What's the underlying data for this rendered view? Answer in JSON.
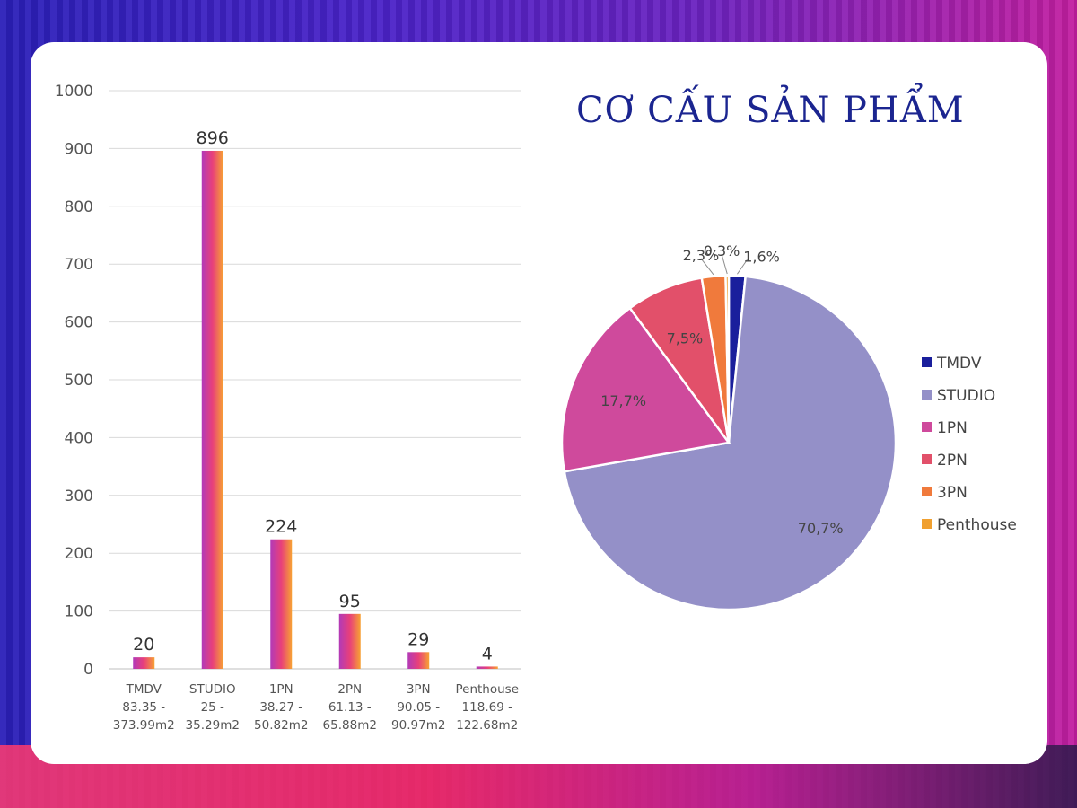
{
  "title": "CƠ CẤU SẢN PHẨM",
  "chart_data": [
    {
      "type": "bar",
      "ylim": [
        0,
        1000
      ],
      "yticks": [
        0,
        100,
        200,
        300,
        400,
        500,
        600,
        700,
        800,
        900,
        1000
      ],
      "grid": true,
      "categories": [
        {
          "name": "TMDV",
          "range": [
            "83.35 -",
            "373.99m2"
          ]
        },
        {
          "name": "STUDIO",
          "range": [
            "25 -",
            "35.29m2"
          ]
        },
        {
          "name": "1PN",
          "range": [
            "38.27 -",
            "50.82m2"
          ]
        },
        {
          "name": "2PN",
          "range": [
            "61.13 -",
            "65.88m2"
          ]
        },
        {
          "name": "3PN",
          "range": [
            "90.05 -",
            "90.97m2"
          ]
        },
        {
          "name": "Penthouse",
          "range": [
            "118.69 -",
            "122.68m2"
          ]
        }
      ],
      "values": [
        20,
        896,
        224,
        95,
        29,
        4
      ]
    },
    {
      "type": "pie",
      "legend": "right",
      "slices": [
        {
          "name": "TMDV",
          "label": "1,6%",
          "value": 1.6,
          "color": "#1a1f9c"
        },
        {
          "name": "STUDIO",
          "label": "70,7%",
          "value": 70.7,
          "color": "#9490c8"
        },
        {
          "name": "1PN",
          "label": "17,7%",
          "value": 17.7,
          "color": "#cf4a9c"
        },
        {
          "name": "2PN",
          "label": "7,5%",
          "value": 7.5,
          "color": "#e2506a"
        },
        {
          "name": "3PN",
          "label": "2,3%",
          "value": 2.3,
          "color": "#f07a3c"
        },
        {
          "name": "Penthouse",
          "label": "0,3%",
          "value": 0.3,
          "color": "#f0a030"
        }
      ]
    }
  ]
}
